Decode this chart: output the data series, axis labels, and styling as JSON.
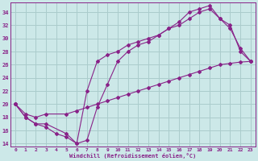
{
  "xlabel": "Windchill (Refroidissement éolien,°C)",
  "bg_color": "#cce8e8",
  "line_color": "#882288",
  "grid_color": "#aacccc",
  "xlim": [
    -0.5,
    23.5
  ],
  "ylim": [
    13.5,
    35.5
  ],
  "yticks": [
    14,
    16,
    18,
    20,
    22,
    24,
    26,
    28,
    30,
    32,
    34
  ],
  "xticks": [
    0,
    1,
    2,
    3,
    4,
    5,
    6,
    7,
    8,
    9,
    10,
    11,
    12,
    13,
    14,
    15,
    16,
    17,
    18,
    19,
    20,
    21,
    22,
    23
  ],
  "curve1_x": [
    0,
    1,
    2,
    3,
    4,
    5,
    6,
    7,
    8,
    9,
    10,
    11,
    12,
    13,
    14,
    15,
    16,
    17,
    18,
    19,
    20,
    21,
    22,
    23
  ],
  "curve1_y": [
    20,
    18,
    17,
    16.5,
    15.5,
    15,
    14,
    14.5,
    19.5,
    23,
    26.5,
    28,
    29,
    29.5,
    30.5,
    31.5,
    32.5,
    34,
    34.5,
    35,
    33,
    31.5,
    28.5,
    26.5
  ],
  "curve2_x": [
    0,
    1,
    2,
    3,
    5,
    6,
    7,
    8,
    9,
    10,
    11,
    12,
    13,
    14,
    15,
    16,
    17,
    18,
    19,
    20,
    21,
    22,
    23
  ],
  "curve2_y": [
    20,
    18,
    17,
    17,
    15.5,
    14,
    22,
    26.5,
    27.5,
    28,
    29,
    29.5,
    30,
    30.5,
    31.5,
    32,
    33,
    34,
    34.5,
    33,
    32,
    28,
    26.5
  ],
  "curve3_x": [
    0,
    1,
    2,
    3,
    5,
    6,
    7,
    8,
    9,
    10,
    11,
    12,
    13,
    14,
    15,
    16,
    17,
    18,
    19,
    20,
    21,
    22,
    23
  ],
  "curve3_y": [
    20,
    18.5,
    18,
    18.5,
    18.5,
    19,
    19.5,
    20,
    20.5,
    21,
    21.5,
    22,
    22.5,
    23,
    23.5,
    24,
    24.5,
    25,
    25.5,
    26,
    26.2,
    26.4,
    26.5
  ]
}
